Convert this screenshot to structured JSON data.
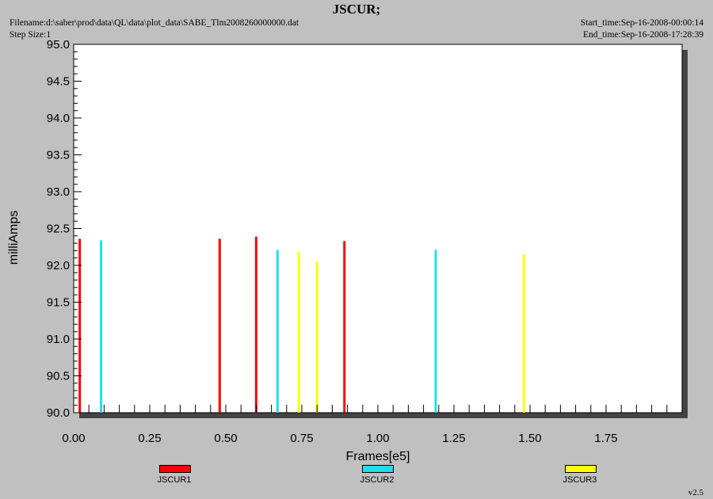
{
  "header": {
    "title": "JSCUR;",
    "filename": "Filename:d:\\saber\\prod\\data\\QL\\data\\plot_data\\SABE_Tlm2008260000000.dat",
    "step_size": "Step Size:1",
    "start_time": "Start_time:Sep-16-2008-00:00:14",
    "end_time": "End_time:Sep-16-2008-17:28:39"
  },
  "version": "v2.5",
  "colors": {
    "JSCUR1": "#ff0000",
    "JSCUR2": "#22ddee",
    "JSCUR3": "#ffff00"
  },
  "chart_data": {
    "type": "bar",
    "xlabel": "Frames[e5]",
    "ylabel": "milliAmps",
    "xlim": [
      0,
      2.0
    ],
    "ylim": [
      90.0,
      95.0
    ],
    "xticks": [
      "0.00",
      "0.25",
      "0.50",
      "0.75",
      "1.00",
      "1.25",
      "1.50",
      "1.75"
    ],
    "yticks": [
      "90.0",
      "90.5",
      "91.0",
      "91.5",
      "92.0",
      "92.5",
      "93.0",
      "93.5",
      "94.0",
      "94.5",
      "95.0"
    ],
    "grid": false,
    "legend_position": "bottom",
    "series": [
      {
        "name": "JSCUR1",
        "points": [
          [
            0.02,
            92.36
          ],
          [
            0.48,
            92.36
          ],
          [
            0.6,
            92.39
          ],
          [
            0.89,
            92.33
          ]
        ]
      },
      {
        "name": "JSCUR2",
        "points": [
          [
            0.09,
            92.34
          ],
          [
            0.67,
            92.21
          ],
          [
            1.19,
            92.21
          ]
        ]
      },
      {
        "name": "JSCUR3",
        "points": [
          [
            0.74,
            92.18
          ],
          [
            0.8,
            92.05
          ],
          [
            1.48,
            92.15
          ]
        ]
      }
    ]
  }
}
